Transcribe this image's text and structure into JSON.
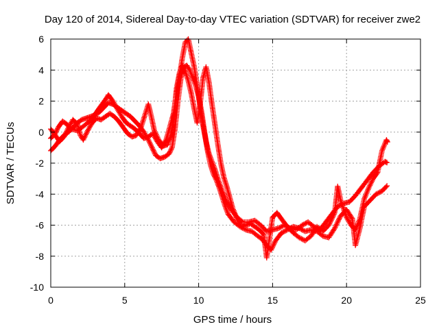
{
  "chart_data": {
    "type": "scatter",
    "title": "Day 120 of 2014, Sidereal Day-to-day VTEC variation (SDTVAR) for receiver zwe2",
    "xlabel": "GPS time / hours",
    "ylabel": "SDTVAR / TECUs",
    "xlim": [
      0,
      25
    ],
    "ylim": [
      -10,
      6
    ],
    "xticks": [
      0,
      5,
      10,
      15,
      20,
      25
    ],
    "yticks": [
      -10,
      -8,
      -6,
      -4,
      -2,
      0,
      2,
      4,
      6
    ],
    "grid": true,
    "legend": "none",
    "marker": "+",
    "series_color": "#ff0000",
    "series": [
      {
        "values": [
          [
            0.0,
            -1.2
          ],
          [
            0.3,
            -0.9
          ],
          [
            0.6,
            -0.5
          ],
          [
            0.9,
            -0.2
          ],
          [
            1.2,
            0.0
          ],
          [
            1.5,
            0.3
          ],
          [
            1.8,
            0.6
          ],
          [
            2.1,
            0.8
          ],
          [
            2.4,
            0.9
          ],
          [
            2.7,
            1.0
          ],
          [
            3.0,
            1.1
          ],
          [
            3.3,
            1.3
          ],
          [
            3.6,
            1.6
          ],
          [
            3.9,
            1.9
          ],
          [
            4.2,
            1.8
          ],
          [
            4.5,
            1.6
          ],
          [
            4.8,
            1.4
          ],
          [
            5.1,
            1.2
          ],
          [
            5.4,
            1.0
          ],
          [
            5.7,
            0.7
          ],
          [
            6.0,
            0.4
          ],
          [
            6.3,
            0.0
          ],
          [
            6.6,
            -0.5
          ],
          [
            6.9,
            -1.1
          ],
          [
            7.1,
            -1.5
          ],
          [
            7.4,
            -1.7
          ],
          [
            7.7,
            -1.6
          ],
          [
            8.0,
            -1.4
          ],
          [
            8.2,
            -1.0
          ],
          [
            8.4,
            0.2
          ],
          [
            8.6,
            2.0
          ],
          [
            8.8,
            3.5
          ],
          [
            9.0,
            4.2
          ],
          [
            9.2,
            4.3
          ],
          [
            9.4,
            4.0
          ],
          [
            9.6,
            3.5
          ],
          [
            9.8,
            3.0
          ],
          [
            10.0,
            2.3
          ],
          [
            10.2,
            1.3
          ],
          [
            10.4,
            0.0
          ],
          [
            10.6,
            -1.2
          ],
          [
            10.8,
            -2.1
          ],
          [
            11.0,
            -2.7
          ],
          [
            11.2,
            -3.1
          ],
          [
            11.4,
            -3.6
          ],
          [
            11.6,
            -4.2
          ],
          [
            11.8,
            -4.8
          ],
          [
            12.0,
            -5.3
          ],
          [
            12.4,
            -5.8
          ],
          [
            12.8,
            -6.1
          ],
          [
            13.2,
            -6.3
          ],
          [
            13.6,
            -6.4
          ],
          [
            14.0,
            -6.7
          ],
          [
            14.3,
            -6.9
          ],
          [
            14.6,
            -7.3
          ],
          [
            14.9,
            -7.6
          ],
          [
            15.2,
            -7.0
          ],
          [
            15.6,
            -6.5
          ],
          [
            16.0,
            -6.3
          ],
          [
            16.4,
            -6.1
          ],
          [
            16.8,
            -6.2
          ],
          [
            17.2,
            -6.4
          ],
          [
            17.6,
            -6.3
          ],
          [
            18.0,
            -6.4
          ],
          [
            18.4,
            -6.7
          ],
          [
            18.8,
            -6.8
          ],
          [
            19.2,
            -6.2
          ],
          [
            19.6,
            -5.4
          ],
          [
            20.0,
            -5.0
          ],
          [
            20.4,
            -5.6
          ],
          [
            20.6,
            -7.3
          ],
          [
            20.9,
            -6.2
          ],
          [
            21.2,
            -4.8
          ],
          [
            21.6,
            -4.4
          ],
          [
            22.0,
            -4.0
          ],
          [
            22.4,
            -3.8
          ],
          [
            22.8,
            -3.4
          ]
        ]
      },
      {
        "values": [
          [
            0.0,
            -0.4
          ],
          [
            0.3,
            -0.1
          ],
          [
            0.5,
            0.3
          ],
          [
            0.8,
            0.7
          ],
          [
            1.1,
            0.5
          ],
          [
            1.4,
            0.2
          ],
          [
            1.8,
            0.1
          ],
          [
            2.1,
            0.3
          ],
          [
            2.5,
            0.6
          ],
          [
            2.8,
            0.9
          ],
          [
            3.1,
            1.3
          ],
          [
            3.4,
            1.7
          ],
          [
            3.7,
            2.1
          ],
          [
            3.9,
            2.4
          ],
          [
            4.2,
            2.0
          ],
          [
            4.5,
            1.5
          ],
          [
            4.8,
            1.0
          ],
          [
            5.1,
            0.6
          ],
          [
            5.4,
            0.4
          ],
          [
            5.7,
            0.2
          ],
          [
            6.0,
            -0.1
          ],
          [
            6.3,
            -0.4
          ],
          [
            6.6,
            -0.3
          ],
          [
            6.9,
            -0.1
          ],
          [
            7.2,
            -0.6
          ],
          [
            7.5,
            -1.0
          ],
          [
            7.8,
            -0.5
          ],
          [
            8.1,
            0.5
          ],
          [
            8.3,
            1.2
          ],
          [
            8.5,
            2.5
          ],
          [
            8.7,
            3.6
          ],
          [
            8.9,
            4.8
          ],
          [
            9.1,
            5.8
          ],
          [
            9.3,
            6.0
          ],
          [
            9.5,
            5.1
          ],
          [
            9.7,
            4.2
          ],
          [
            9.9,
            3.0
          ],
          [
            10.1,
            1.6
          ],
          [
            10.3,
            0.4
          ],
          [
            10.5,
            -0.6
          ],
          [
            10.7,
            -1.4
          ],
          [
            10.9,
            -1.9
          ],
          [
            11.1,
            -2.4
          ],
          [
            11.3,
            -3.0
          ],
          [
            11.6,
            -3.8
          ],
          [
            11.9,
            -4.5
          ],
          [
            12.2,
            -5.0
          ],
          [
            12.6,
            -5.5
          ],
          [
            13.0,
            -5.8
          ],
          [
            13.4,
            -5.8
          ],
          [
            13.8,
            -5.7
          ],
          [
            14.2,
            -6.0
          ],
          [
            14.6,
            -6.4
          ],
          [
            15.0,
            -6.3
          ],
          [
            15.4,
            -6.2
          ],
          [
            15.8,
            -6.0
          ],
          [
            16.2,
            -6.2
          ],
          [
            16.6,
            -6.3
          ],
          [
            17.0,
            -6.0
          ],
          [
            17.4,
            -5.8
          ],
          [
            17.8,
            -6.1
          ],
          [
            18.2,
            -6.3
          ],
          [
            18.6,
            -5.8
          ],
          [
            19.0,
            -5.3
          ],
          [
            19.4,
            -4.8
          ],
          [
            19.8,
            -4.6
          ],
          [
            20.2,
            -4.5
          ],
          [
            20.6,
            -4.1
          ],
          [
            21.0,
            -3.6
          ],
          [
            21.4,
            -3.1
          ],
          [
            21.8,
            -2.6
          ],
          [
            22.2,
            -2.2
          ],
          [
            22.6,
            -1.9
          ],
          [
            22.8,
            -2.0
          ]
        ]
      },
      {
        "values": [
          [
            0.0,
            0.2
          ],
          [
            0.3,
            -0.2
          ],
          [
            0.6,
            -0.6
          ],
          [
            0.9,
            -0.3
          ],
          [
            1.2,
            0.3
          ],
          [
            1.5,
            0.8
          ],
          [
            1.8,
            0.5
          ],
          [
            2.0,
            -0.2
          ],
          [
            2.2,
            -0.5
          ],
          [
            2.5,
            0.1
          ],
          [
            2.8,
            0.6
          ],
          [
            3.1,
            0.9
          ],
          [
            3.4,
            0.8
          ],
          [
            3.7,
            1.0
          ],
          [
            4.0,
            1.2
          ],
          [
            4.3,
            1.0
          ],
          [
            4.6,
            0.7
          ],
          [
            4.9,
            0.3
          ],
          [
            5.2,
            -0.1
          ],
          [
            5.5,
            -0.3
          ],
          [
            5.8,
            -0.2
          ],
          [
            6.1,
            0.3
          ],
          [
            6.4,
            1.2
          ],
          [
            6.6,
            1.8
          ],
          [
            6.8,
            1.0
          ],
          [
            7.0,
            0.1
          ],
          [
            7.3,
            -0.5
          ],
          [
            7.6,
            -0.9
          ],
          [
            7.9,
            -0.8
          ],
          [
            8.1,
            -0.3
          ],
          [
            8.3,
            0.8
          ],
          [
            8.5,
            2.8
          ],
          [
            8.7,
            3.8
          ],
          [
            8.9,
            4.3
          ],
          [
            9.1,
            3.9
          ],
          [
            9.3,
            3.3
          ],
          [
            9.5,
            2.5
          ],
          [
            9.7,
            1.5
          ],
          [
            9.9,
            0.6
          ],
          [
            10.1,
            1.8
          ],
          [
            10.3,
            3.5
          ],
          [
            10.5,
            4.2
          ],
          [
            10.7,
            3.2
          ],
          [
            10.9,
            1.8
          ],
          [
            11.1,
            0.5
          ],
          [
            11.3,
            -0.8
          ],
          [
            11.5,
            -2.0
          ],
          [
            11.7,
            -2.9
          ],
          [
            11.9,
            -3.5
          ],
          [
            12.1,
            -4.2
          ],
          [
            12.3,
            -4.9
          ],
          [
            12.6,
            -5.6
          ],
          [
            12.9,
            -6.1
          ],
          [
            13.2,
            -6.0
          ],
          [
            13.5,
            -5.9
          ],
          [
            13.8,
            -6.1
          ],
          [
            14.1,
            -6.3
          ],
          [
            14.4,
            -6.6
          ],
          [
            14.6,
            -8.1
          ],
          [
            15.0,
            -5.5
          ],
          [
            15.3,
            -5.2
          ],
          [
            15.6,
            -5.6
          ],
          [
            16.0,
            -6.1
          ],
          [
            16.4,
            -6.5
          ],
          [
            16.8,
            -6.8
          ],
          [
            17.2,
            -7.0
          ],
          [
            17.6,
            -6.7
          ],
          [
            18.0,
            -6.1
          ],
          [
            18.4,
            -6.4
          ],
          [
            18.8,
            -6.0
          ],
          [
            19.2,
            -5.2
          ],
          [
            19.4,
            -3.5
          ],
          [
            19.6,
            -4.4
          ],
          [
            20.0,
            -5.5
          ],
          [
            20.3,
            -6.0
          ],
          [
            20.6,
            -6.3
          ],
          [
            20.9,
            -5.6
          ],
          [
            21.2,
            -4.3
          ],
          [
            21.5,
            -3.6
          ],
          [
            21.8,
            -3.0
          ],
          [
            22.1,
            -2.6
          ],
          [
            22.4,
            -1.2
          ],
          [
            22.7,
            -0.5
          ],
          [
            22.8,
            -0.7
          ]
        ]
      }
    ]
  }
}
